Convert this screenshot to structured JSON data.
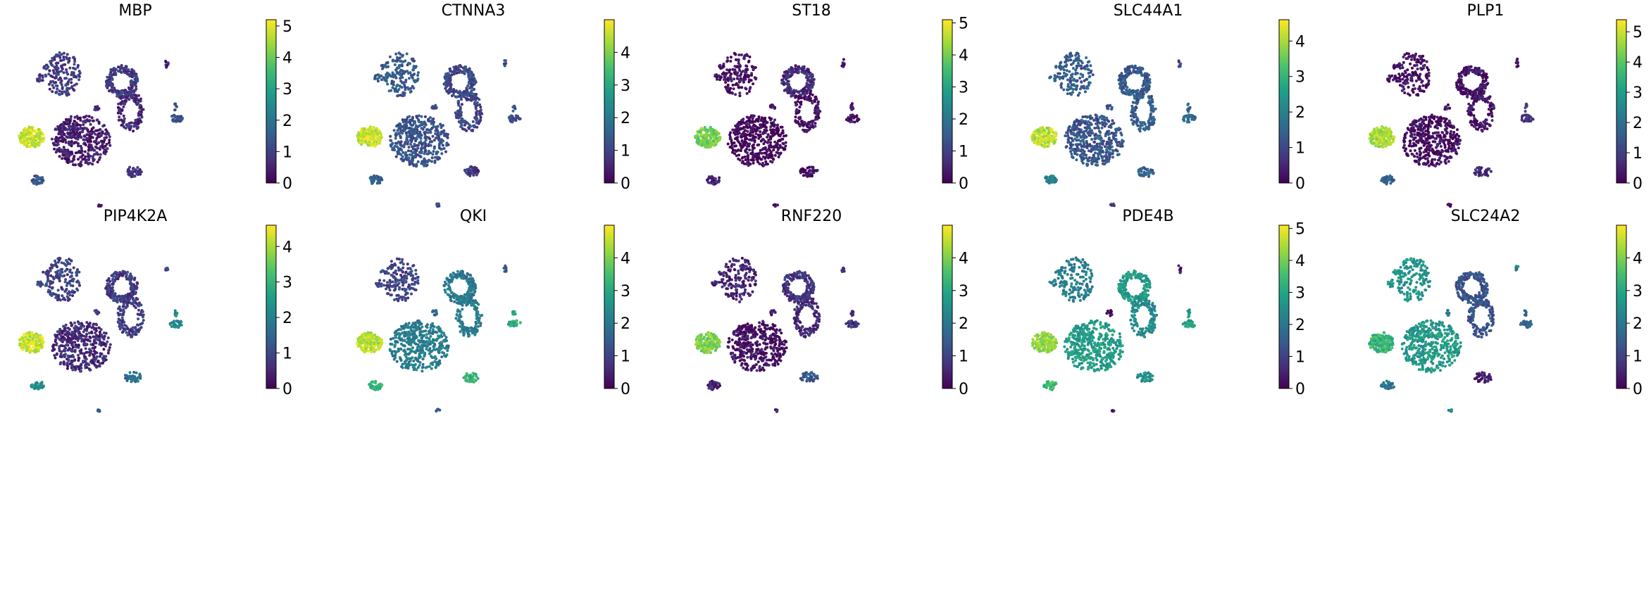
{
  "chart_data": {
    "type": "scatter",
    "description_kind": "UMAP feature plots",
    "colormap": "viridis",
    "colormap_stops": [
      "#440154",
      "#46327e",
      "#365c8d",
      "#277f8e",
      "#1fa187",
      "#4ac16d",
      "#a0da39",
      "#fde725"
    ],
    "panels": [
      {
        "gene": "MBP",
        "vmax": 5.2,
        "ticks": [
          "0",
          "1",
          "2",
          "3",
          "4",
          "5"
        ],
        "cluster_levels": {
          "ol": 4.8,
          "opc": 1.4,
          "top": 0.9,
          "mid": 0.4,
          "ring": 0.9,
          "ring2": 0.6,
          "right": 1.3,
          "small": 0.7,
          "tiny": 0.6
        }
      },
      {
        "gene": "CTNNA3",
        "vmax": 5.0,
        "ticks": [
          "0",
          "1",
          "2",
          "3",
          "4"
        ],
        "cluster_levels": {
          "ol": 4.6,
          "opc": 1.5,
          "top": 1.4,
          "mid": 1.3,
          "ring": 1.1,
          "ring2": 1.0,
          "right": 1.2,
          "small": 0.8,
          "tiny": 1.2
        }
      },
      {
        "gene": "ST18",
        "vmax": 5.1,
        "ticks": [
          "0",
          "1",
          "2",
          "3",
          "4",
          "5"
        ],
        "cluster_levels": {
          "ol": 4.0,
          "opc": 0.5,
          "top": 0.2,
          "mid": 0.1,
          "ring": 0.6,
          "ring2": 0.3,
          "right": 0.3,
          "small": 0.2,
          "tiny": 0.2
        }
      },
      {
        "gene": "SLC44A1",
        "vmax": 4.6,
        "ticks": [
          "0",
          "1",
          "2",
          "3",
          "4"
        ],
        "cluster_levels": {
          "ol": 4.1,
          "opc": 2.0,
          "top": 1.3,
          "mid": 1.2,
          "ring": 1.3,
          "ring2": 1.3,
          "right": 1.6,
          "small": 1.5,
          "tiny": 1.0
        }
      },
      {
        "gene": "PLP1",
        "vmax": 5.4,
        "ticks": [
          "0",
          "1",
          "2",
          "3",
          "4",
          "5"
        ],
        "cluster_levels": {
          "ol": 4.7,
          "opc": 1.6,
          "top": 0.2,
          "mid": 0.2,
          "ring": 0.3,
          "ring2": 0.3,
          "right": 0.8,
          "small": 0.7,
          "tiny": 0.3
        }
      },
      {
        "gene": "PIP4K2A",
        "vmax": 4.6,
        "ticks": [
          "0",
          "1",
          "2",
          "3",
          "4"
        ],
        "cluster_levels": {
          "ol": 4.2,
          "opc": 2.3,
          "top": 0.9,
          "mid": 0.6,
          "ring": 0.8,
          "ring2": 0.8,
          "right": 2.1,
          "small": 1.7,
          "tiny": 1.0
        }
      },
      {
        "gene": "QKI",
        "vmax": 5.0,
        "ticks": [
          "0",
          "1",
          "2",
          "3",
          "4"
        ],
        "cluster_levels": {
          "ol": 4.5,
          "opc": 3.3,
          "top": 1.0,
          "mid": 2.1,
          "ring": 2.0,
          "ring2": 2.1,
          "right": 3.2,
          "small": 3.4,
          "tiny": 1.5
        }
      },
      {
        "gene": "RNF220",
        "vmax": 5.0,
        "ticks": [
          "0",
          "1",
          "2",
          "3",
          "4"
        ],
        "cluster_levels": {
          "ol": 4.0,
          "opc": 0.6,
          "top": 0.5,
          "mid": 0.2,
          "ring": 0.8,
          "ring2": 0.6,
          "right": 0.8,
          "small": 1.4,
          "tiny": 0.4
        }
      },
      {
        "gene": "PDE4B",
        "vmax": 5.1,
        "ticks": [
          "0",
          "1",
          "2",
          "3",
          "4",
          "5"
        ],
        "cluster_levels": {
          "ol": 4.3,
          "opc": 3.4,
          "top": 2.2,
          "mid": 2.8,
          "ring": 2.8,
          "ring2": 2.5,
          "right": 2.9,
          "small": 2.6,
          "tiny": 0.3
        }
      },
      {
        "gene": "SLC24A2",
        "vmax": 5.0,
        "ticks": [
          "0",
          "1",
          "2",
          "3",
          "4"
        ],
        "cluster_levels": {
          "ol": 3.3,
          "opc": 2.0,
          "top": 2.6,
          "mid": 2.7,
          "ring": 1.3,
          "ring2": 1.3,
          "right": 1.6,
          "small": 0.5,
          "tiny": 2.2
        }
      }
    ]
  }
}
